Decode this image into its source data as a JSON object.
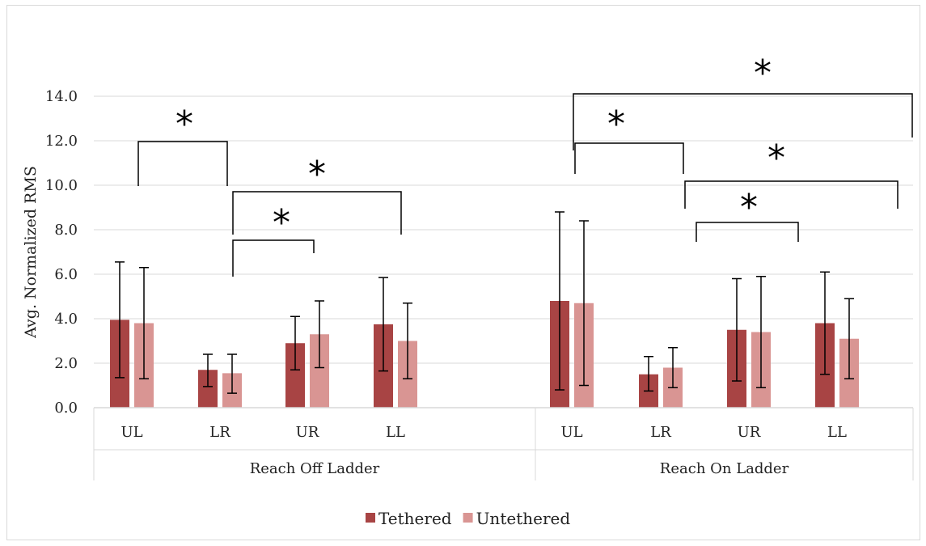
{
  "chart_data": {
    "type": "bar",
    "ylabel": "Avg. Normalized RMS",
    "ylim": [
      0,
      14
    ],
    "yticks": [
      "0.0",
      "2.0",
      "4.0",
      "6.0",
      "8.0",
      "10.0",
      "12.0",
      "14.0"
    ],
    "grid": true,
    "legend_position": "bottom",
    "groups": [
      {
        "name": "Reach Off Ladder",
        "categories": [
          "UL",
          "LR",
          "UR",
          "LL"
        ]
      },
      {
        "name": "Reach On Ladder",
        "categories": [
          "UL",
          "LR",
          "UR",
          "LL"
        ]
      }
    ],
    "series": [
      {
        "name": "Tethered",
        "color": "#a84444",
        "values": [
          3.95,
          1.7,
          2.9,
          3.75,
          4.8,
          1.5,
          3.5,
          3.8
        ],
        "error_low": [
          1.35,
          0.95,
          1.7,
          1.65,
          0.8,
          0.75,
          1.2,
          1.5
        ],
        "error_high": [
          6.55,
          2.4,
          4.1,
          5.85,
          8.8,
          2.3,
          5.8,
          6.1
        ]
      },
      {
        "name": "Untethered",
        "color": "#d99593",
        "values": [
          3.8,
          1.55,
          3.3,
          3.0,
          4.7,
          1.8,
          3.4,
          3.1
        ],
        "error_low": [
          1.3,
          0.65,
          1.8,
          1.3,
          1.0,
          0.9,
          0.9,
          1.3
        ],
        "error_high": [
          6.3,
          2.4,
          4.8,
          4.7,
          8.4,
          2.7,
          5.9,
          4.9
        ]
      }
    ],
    "annotations": [
      {
        "text": "*",
        "from": 0,
        "to": 1
      },
      {
        "text": "*",
        "from": 1,
        "to": 2
      },
      {
        "text": "*",
        "from": 1,
        "to": 3
      },
      {
        "text": "*",
        "from": 4,
        "to": 5
      },
      {
        "text": "*",
        "from": 4,
        "to": 7
      },
      {
        "text": "*",
        "from": 5,
        "to": 7
      },
      {
        "text": "*",
        "from": 5,
        "to": 6
      }
    ]
  }
}
